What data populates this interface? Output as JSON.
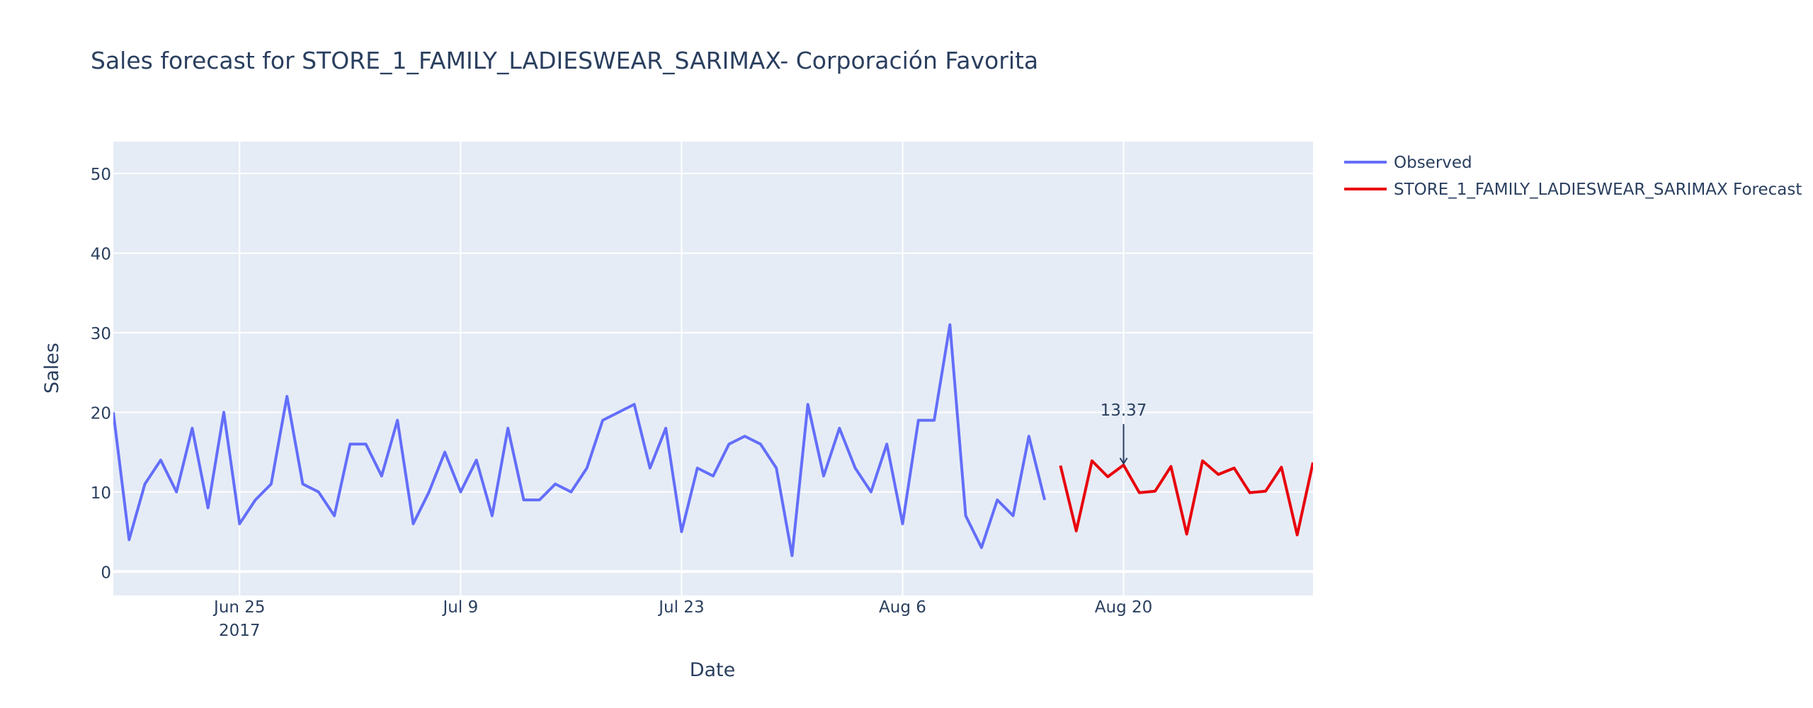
{
  "chart_data": {
    "type": "line",
    "title": "Sales forecast for STORE_1_FAMILY_LADIESWEAR_SARIMAX- Corporación Favorita",
    "xlabel": "Date",
    "ylabel": "Sales",
    "ylim": [
      -3,
      54
    ],
    "xlim": [
      "2017-06-17",
      "2017-09-01"
    ],
    "grid": true,
    "legend_position": "top-right, outside plot",
    "x_ticks": [
      {
        "date": "2017-06-25",
        "label": "Jun 25",
        "sublabel": "2017"
      },
      {
        "date": "2017-07-09",
        "label": "Jul 9",
        "sublabel": ""
      },
      {
        "date": "2017-07-23",
        "label": "Jul 23",
        "sublabel": ""
      },
      {
        "date": "2017-08-06",
        "label": "Aug 6",
        "sublabel": ""
      },
      {
        "date": "2017-08-20",
        "label": "Aug 20",
        "sublabel": ""
      }
    ],
    "y_ticks": [
      0,
      10,
      20,
      30,
      40,
      50
    ],
    "series": [
      {
        "name": "Observed",
        "color": "#636efa",
        "x": [
          "2017-06-17",
          "2017-06-18",
          "2017-06-19",
          "2017-06-20",
          "2017-06-21",
          "2017-06-22",
          "2017-06-23",
          "2017-06-24",
          "2017-06-25",
          "2017-06-26",
          "2017-06-27",
          "2017-06-28",
          "2017-06-29",
          "2017-06-30",
          "2017-07-01",
          "2017-07-02",
          "2017-07-03",
          "2017-07-04",
          "2017-07-05",
          "2017-07-06",
          "2017-07-07",
          "2017-07-08",
          "2017-07-09",
          "2017-07-10",
          "2017-07-11",
          "2017-07-12",
          "2017-07-13",
          "2017-07-14",
          "2017-07-15",
          "2017-07-16",
          "2017-07-17",
          "2017-07-18",
          "2017-07-19",
          "2017-07-20",
          "2017-07-21",
          "2017-07-22",
          "2017-07-23",
          "2017-07-24",
          "2017-07-25",
          "2017-07-26",
          "2017-07-27",
          "2017-07-28",
          "2017-07-29",
          "2017-07-30",
          "2017-07-31",
          "2017-08-01",
          "2017-08-02",
          "2017-08-03",
          "2017-08-04",
          "2017-08-05",
          "2017-08-06",
          "2017-08-07",
          "2017-08-08",
          "2017-08-09",
          "2017-08-10",
          "2017-08-11",
          "2017-08-12",
          "2017-08-13",
          "2017-08-14",
          "2017-08-15"
        ],
        "values": [
          20,
          4,
          11,
          14,
          10,
          18,
          8,
          20,
          6,
          9,
          11,
          22,
          11,
          10,
          7,
          16,
          16,
          12,
          19,
          6,
          10,
          15,
          10,
          14,
          7,
          18,
          9,
          9,
          11,
          10,
          13,
          19,
          20,
          21,
          13,
          18,
          5,
          13,
          12,
          16,
          17,
          16,
          13,
          2,
          21,
          12,
          18,
          13,
          10,
          16,
          6,
          19,
          19,
          31,
          7,
          3,
          9,
          7,
          17,
          9
        ]
      },
      {
        "name": "STORE_1_FAMILY_LADIESWEAR_SARIMAX Forecast",
        "color": "#e8000b",
        "x": [
          "2017-08-16",
          "2017-08-17",
          "2017-08-18",
          "2017-08-19",
          "2017-08-20",
          "2017-08-21",
          "2017-08-22",
          "2017-08-23",
          "2017-08-24",
          "2017-08-25",
          "2017-08-26",
          "2017-08-27",
          "2017-08-28",
          "2017-08-29",
          "2017-08-30",
          "2017-08-31",
          "2017-09-01"
        ],
        "values": [
          13.3,
          5.1,
          13.9,
          11.9,
          13.37,
          9.9,
          10.1,
          13.2,
          4.7,
          13.9,
          12.2,
          13.0,
          9.9,
          10.1,
          13.1,
          4.6,
          13.7
        ]
      }
    ],
    "annotations": [
      {
        "text": "13.37",
        "x": "2017-08-20",
        "y": 13.37,
        "arrow": true
      }
    ]
  }
}
